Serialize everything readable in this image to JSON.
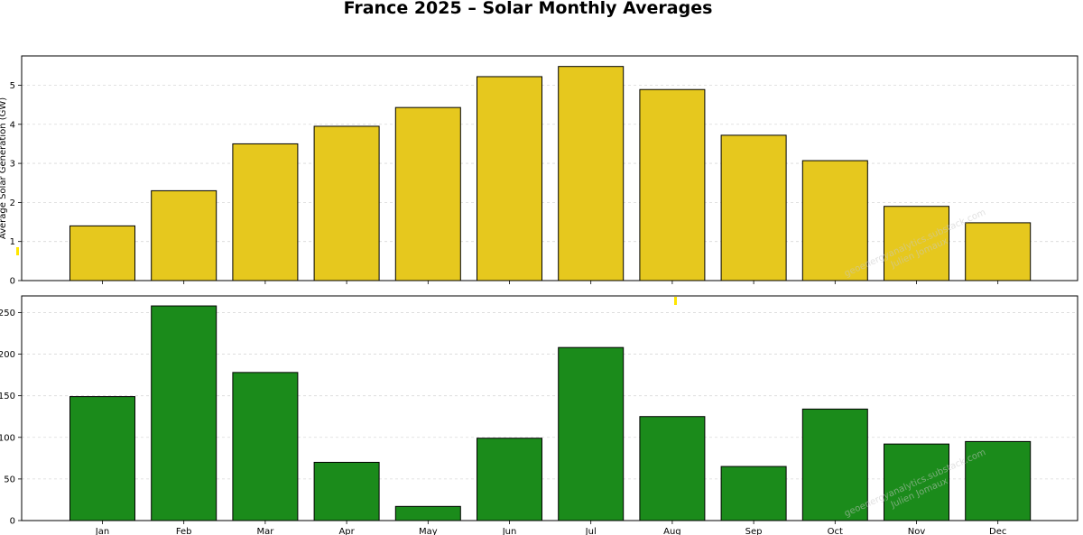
{
  "title": "France 2025 – Solar Monthly Averages",
  "watermark": {
    "line1": "geoenergyanalytics.substack.com",
    "line2": "Julien Jomaux"
  },
  "colors": {
    "top_bar": "#E6C81E",
    "bottom_bar": "#1B8B1B",
    "bar_edge": "#000000",
    "grid": "#d9d9d9",
    "accent_marker": "#FFE600"
  },
  "chart_data": [
    {
      "type": "bar",
      "title": "",
      "xlabel": "",
      "ylabel": "Average Solar Generation (GW)",
      "categories": [
        "Jan",
        "Feb",
        "Mar",
        "Apr",
        "May",
        "Jun",
        "Jul",
        "Aug",
        "Sep",
        "Oct",
        "Nov",
        "Dec"
      ],
      "values": [
        1.4,
        2.3,
        3.5,
        3.95,
        4.43,
        5.22,
        5.48,
        4.89,
        3.72,
        3.07,
        1.9,
        1.48
      ],
      "ylim": [
        0,
        5.75
      ],
      "yticks": [
        "0",
        "1",
        "2",
        "3",
        "4",
        "5"
      ],
      "grid": "y-dashed",
      "color": "#E6C81E"
    },
    {
      "type": "bar",
      "title": "",
      "xlabel": "",
      "ylabel": "",
      "categories": [
        "Jan",
        "Feb",
        "Mar",
        "Apr",
        "May",
        "Jun",
        "Jul",
        "Aug",
        "Sep",
        "Oct",
        "Nov",
        "Dec"
      ],
      "values": [
        149,
        258,
        178,
        70,
        17,
        99,
        208,
        125,
        65,
        134,
        92,
        95
      ],
      "ylim": [
        0,
        270
      ],
      "yticks": [
        "0",
        "50",
        "100",
        "150",
        "200",
        "250"
      ],
      "grid": "y-dashed",
      "color": "#1B8B1B"
    }
  ]
}
